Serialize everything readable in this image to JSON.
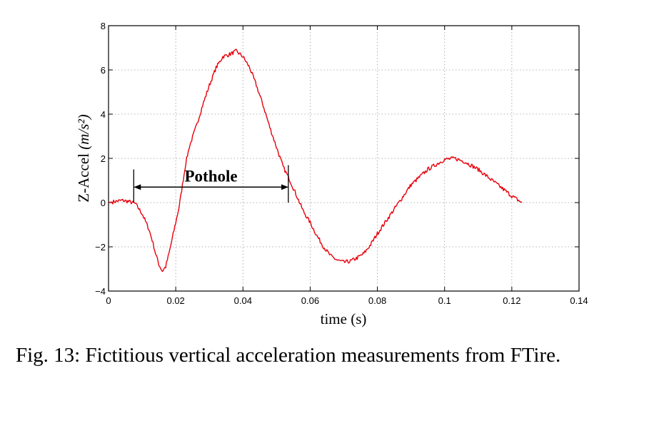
{
  "chart_data": {
    "type": "line",
    "xlabel": "time (s)",
    "ylabel_prefix": "Z-Accel ",
    "ylabel_unit": "(m/s²)",
    "xlim": [
      0,
      0.14
    ],
    "ylim": [
      -4,
      8
    ],
    "x_ticks": [
      0,
      0.02,
      0.04,
      0.06,
      0.08,
      0.1,
      0.12,
      0.14
    ],
    "x_tick_labels": [
      "0",
      "0.02",
      "0.04",
      "0.06",
      "0.08",
      "0.1",
      "0.12",
      "0.14"
    ],
    "y_ticks": [
      -4,
      -2,
      0,
      2,
      4,
      6,
      8
    ],
    "y_tick_labels": [
      "−4",
      "−2",
      "0",
      "2",
      "4",
      "6",
      "8"
    ],
    "grid": true,
    "series": [
      {
        "color": "#e8000b",
        "x": [
          0,
          0.002,
          0.004,
          0.006,
          0.008,
          0.01,
          0.012,
          0.013,
          0.014,
          0.015,
          0.016,
          0.017,
          0.018,
          0.019,
          0.02,
          0.021,
          0.022,
          0.023,
          0.024,
          0.026,
          0.028,
          0.03,
          0.032,
          0.034,
          0.036,
          0.038,
          0.04,
          0.042,
          0.044,
          0.046,
          0.048,
          0.05,
          0.052,
          0.054,
          0.056,
          0.058,
          0.06,
          0.062,
          0.064,
          0.066,
          0.068,
          0.07,
          0.072,
          0.074,
          0.076,
          0.078,
          0.08,
          0.085,
          0.09,
          0.095,
          0.1,
          0.103,
          0.106,
          0.11,
          0.115,
          0.12,
          0.123
        ],
        "y": [
          0,
          0.05,
          0.1,
          0.05,
          -0.05,
          -0.5,
          -1.2,
          -1.7,
          -2.3,
          -2.8,
          -3.1,
          -2.9,
          -2.3,
          -1.6,
          -0.9,
          -0.2,
          0.8,
          1.8,
          2.5,
          3.4,
          4.4,
          5.3,
          6.1,
          6.6,
          6.7,
          6.85,
          6.6,
          6.1,
          5.3,
          4.4,
          3.4,
          2.5,
          1.6,
          1.0,
          0.3,
          -0.4,
          -0.9,
          -1.5,
          -2.0,
          -2.4,
          -2.6,
          -2.7,
          -2.65,
          -2.5,
          -2.3,
          -1.9,
          -1.4,
          -0.3,
          0.8,
          1.5,
          1.95,
          2.0,
          1.85,
          1.5,
          0.9,
          0.3,
          0.0
        ]
      }
    ],
    "annotation": {
      "label": "Pothole",
      "x_start": 0.0075,
      "x_end": 0.0535,
      "y_arrow": 0.7,
      "y_top": 1.5,
      "y_bottom": 0
    }
  },
  "caption": "Fig. 13: Fictitious vertical acceleration measurements from FTire."
}
